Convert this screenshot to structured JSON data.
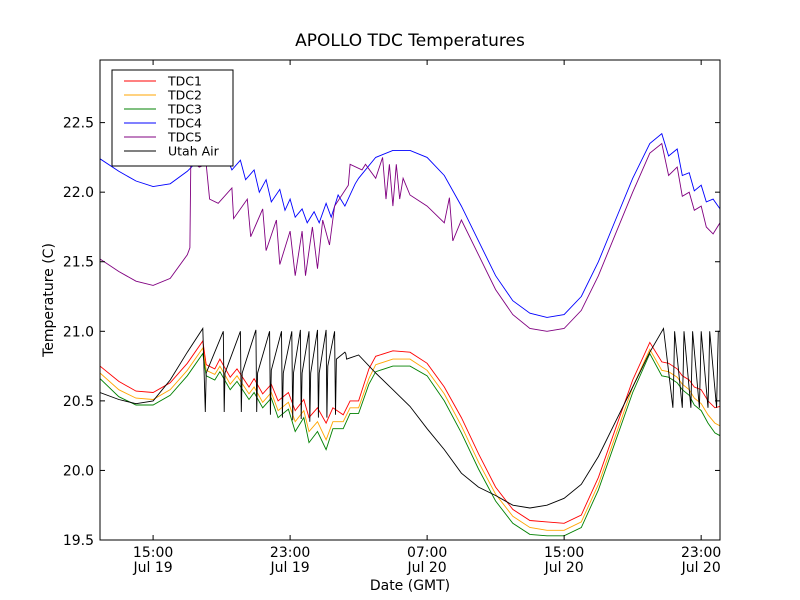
{
  "chart_data": {
    "type": "line",
    "title": "APOLLO TDC Temperatures",
    "xlabel": "Date (GMT)",
    "ylabel": "Temperature (C)",
    "x_units": "hours since 15:00 Jul 19 (GMT)",
    "xlim": [
      -3.1,
      33.1
    ],
    "ylim": [
      19.5,
      22.95
    ],
    "grid": false,
    "legend_position": "top-left",
    "x_ticks": [
      {
        "value": 0,
        "label_time": "15:00",
        "label_date": "Jul 19"
      },
      {
        "value": 8,
        "label_time": "23:00",
        "label_date": "Jul 19"
      },
      {
        "value": 16,
        "label_time": "07:00",
        "label_date": "Jul 20"
      },
      {
        "value": 24,
        "label_time": "15:00",
        "label_date": "Jul 20"
      },
      {
        "value": 32,
        "label_time": "23:00",
        "label_date": "Jul 20"
      }
    ],
    "y_ticks": [
      {
        "value": 19.5,
        "label": "19.5"
      },
      {
        "value": 20.0,
        "label": "20.0"
      },
      {
        "value": 20.5,
        "label": "20.5"
      },
      {
        "value": 21.0,
        "label": "21.0"
      },
      {
        "value": 21.5,
        "label": "21.5"
      },
      {
        "value": 22.0,
        "label": "22.0"
      },
      {
        "value": 22.5,
        "label": "22.5"
      }
    ],
    "series": [
      {
        "name": "TDC1",
        "color": "#ff0000",
        "x": [
          -3.1,
          -2,
          -1,
          0,
          1,
          2,
          2.9,
          3.1,
          3.6,
          3.9,
          4.5,
          4.9,
          5.6,
          5.9,
          6.4,
          6.9,
          7.3,
          7.9,
          8.3,
          8.8,
          9.1,
          9.6,
          10.1,
          10.5,
          11.1,
          11.5,
          12,
          12.6,
          13,
          14,
          15,
          16,
          17,
          18,
          19,
          20,
          21,
          22,
          23,
          24,
          25,
          26,
          27,
          28,
          29,
          29.7,
          30.1,
          30.6,
          30.9,
          31.3,
          31.6,
          32,
          32.4,
          32.8,
          33.1
        ],
        "y": [
          20.75,
          20.64,
          20.57,
          20.56,
          20.63,
          20.77,
          20.93,
          20.76,
          20.73,
          20.8,
          20.67,
          20.73,
          20.6,
          20.66,
          20.55,
          20.62,
          20.5,
          20.56,
          20.43,
          20.51,
          20.38,
          20.45,
          20.34,
          20.45,
          20.4,
          20.5,
          20.5,
          20.73,
          20.82,
          20.86,
          20.85,
          20.77,
          20.6,
          20.38,
          20.12,
          19.88,
          19.72,
          19.64,
          19.63,
          19.62,
          19.68,
          19.95,
          20.3,
          20.65,
          20.92,
          20.78,
          20.77,
          20.73,
          20.68,
          20.65,
          20.6,
          20.58,
          20.5,
          20.45,
          20.46
        ]
      },
      {
        "name": "TDC2",
        "color": "#ffa500",
        "x": [
          -3.1,
          -2,
          -1,
          0,
          1,
          2,
          2.9,
          3.1,
          3.6,
          3.9,
          4.5,
          4.9,
          5.6,
          5.9,
          6.4,
          6.9,
          7.3,
          7.9,
          8.3,
          8.8,
          9.1,
          9.6,
          10.1,
          10.5,
          11.1,
          11.5,
          12,
          12.6,
          13,
          14,
          15,
          16,
          17,
          18,
          19,
          20,
          21,
          22,
          23,
          24,
          25,
          26,
          27,
          28,
          29,
          29.7,
          30.1,
          30.6,
          30.9,
          31.3,
          31.6,
          32,
          32.4,
          32.8,
          33.1
        ],
        "y": [
          20.7,
          20.58,
          20.52,
          20.51,
          20.58,
          20.72,
          20.88,
          20.72,
          20.69,
          20.75,
          20.62,
          20.68,
          20.55,
          20.6,
          20.49,
          20.56,
          20.43,
          20.49,
          20.35,
          20.43,
          20.28,
          20.35,
          20.22,
          20.35,
          20.35,
          20.45,
          20.45,
          20.66,
          20.76,
          20.8,
          20.8,
          20.72,
          20.55,
          20.32,
          20.06,
          19.83,
          19.67,
          19.59,
          19.57,
          19.57,
          19.63,
          19.9,
          20.25,
          20.6,
          20.87,
          20.72,
          20.71,
          20.67,
          20.62,
          20.58,
          20.52,
          20.48,
          20.4,
          20.34,
          20.32
        ]
      },
      {
        "name": "TDC3",
        "color": "#008000",
        "x": [
          -3.1,
          -2,
          -1,
          0,
          1,
          2,
          2.9,
          3.1,
          3.6,
          3.9,
          4.5,
          4.9,
          5.6,
          5.9,
          6.4,
          6.9,
          7.3,
          7.9,
          8.3,
          8.8,
          9.1,
          9.6,
          10.1,
          10.5,
          11.1,
          11.5,
          12,
          12.6,
          13,
          14,
          15,
          16,
          17,
          18,
          19,
          20,
          21,
          22,
          23,
          24,
          25,
          26,
          27,
          28,
          29,
          29.7,
          30.1,
          30.6,
          30.9,
          31.3,
          31.6,
          32,
          32.4,
          32.8,
          33.1
        ],
        "y": [
          20.66,
          20.53,
          20.47,
          20.47,
          20.54,
          20.68,
          20.84,
          20.68,
          20.65,
          20.71,
          20.58,
          20.64,
          20.51,
          20.56,
          20.45,
          20.52,
          20.38,
          20.44,
          20.28,
          20.38,
          20.2,
          20.28,
          20.15,
          20.3,
          20.3,
          20.41,
          20.41,
          20.62,
          20.71,
          20.75,
          20.75,
          20.68,
          20.5,
          20.27,
          20.01,
          19.78,
          19.62,
          19.54,
          19.53,
          19.53,
          19.59,
          19.86,
          20.21,
          20.56,
          20.84,
          20.68,
          20.67,
          20.63,
          20.58,
          20.54,
          20.47,
          20.43,
          20.34,
          20.27,
          20.25
        ]
      },
      {
        "name": "TDC4",
        "color": "#0000ff",
        "x": [
          -3.1,
          -2,
          -1,
          0,
          1,
          2,
          2.4,
          2.7,
          3.1,
          3.5,
          3.9,
          4.3,
          4.6,
          5.1,
          5.4,
          5.9,
          6.2,
          6.6,
          6.9,
          7.4,
          7.7,
          8,
          8.3,
          8.7,
          9,
          9.4,
          9.7,
          10.1,
          10.4,
          10.8,
          11.2,
          11.8,
          12,
          13,
          14,
          15,
          16,
          17,
          18,
          19,
          20,
          21,
          22,
          23,
          24,
          25,
          26,
          27,
          28,
          29,
          29.7,
          30.1,
          30.6,
          30.9,
          31.3,
          31.6,
          32,
          32.3,
          32.7,
          33.1
        ],
        "y": [
          22.24,
          22.15,
          22.08,
          22.04,
          22.06,
          22.15,
          22.2,
          22.27,
          22.19,
          22.21,
          22.19,
          22.25,
          22.16,
          22.23,
          22.09,
          22.16,
          22.0,
          22.09,
          21.93,
          22.02,
          21.87,
          21.95,
          21.82,
          21.88,
          21.78,
          21.86,
          21.78,
          21.92,
          21.82,
          21.98,
          21.9,
          22.06,
          22.1,
          22.25,
          22.3,
          22.3,
          22.25,
          22.12,
          21.9,
          21.65,
          21.4,
          21.22,
          21.13,
          21.1,
          21.12,
          21.25,
          21.5,
          21.8,
          22.1,
          22.35,
          22.42,
          22.26,
          22.31,
          22.12,
          22.14,
          22.01,
          22.05,
          21.93,
          21.95,
          21.88
        ]
      },
      {
        "name": "TDC5",
        "color": "#800080",
        "x": [
          -3.1,
          -2,
          -1,
          0,
          1,
          2,
          2.15,
          2.2,
          2.7,
          3.1,
          3.3,
          3.8,
          4.6,
          4.7,
          5.5,
          5.7,
          6.4,
          6.6,
          7.2,
          7.4,
          8,
          8.3,
          8.7,
          8.9,
          9.3,
          9.6,
          9.9,
          10.3,
          10.6,
          11.4,
          11.5,
          12.2,
          12.4,
          13,
          13.4,
          13.6,
          13.8,
          14,
          14.2,
          14.4,
          14.6,
          15,
          16,
          17,
          17.3,
          17.5,
          18,
          19,
          20,
          21,
          22,
          23,
          24,
          25,
          26,
          27,
          28,
          29,
          29.7,
          30.1,
          30.6,
          30.9,
          31.3,
          31.6,
          32,
          32.3,
          32.7,
          33.1
        ],
        "y": [
          21.52,
          21.43,
          21.36,
          21.33,
          21.38,
          21.55,
          21.6,
          22.22,
          22.18,
          22.2,
          21.95,
          21.92,
          22.03,
          21.81,
          21.95,
          21.68,
          21.88,
          21.58,
          21.8,
          21.48,
          21.72,
          21.4,
          21.72,
          21.4,
          21.75,
          21.45,
          21.8,
          21.62,
          21.9,
          22.05,
          22.2,
          22.16,
          22.2,
          22.1,
          22.25,
          21.95,
          22.2,
          21.9,
          22.2,
          21.95,
          22.1,
          21.98,
          21.9,
          21.78,
          21.96,
          21.65,
          21.8,
          21.55,
          21.3,
          21.12,
          21.02,
          21.0,
          21.02,
          21.15,
          21.4,
          21.7,
          22.0,
          22.28,
          22.35,
          22.12,
          22.18,
          21.97,
          22.0,
          21.87,
          21.9,
          21.75,
          21.7,
          21.78
        ]
      },
      {
        "name": "Utah Air",
        "color": "#000000",
        "x": [
          -3.1,
          -2,
          -1,
          0,
          1,
          2,
          2.9,
          3.05,
          3.1,
          4.1,
          4.15,
          4.2,
          5.1,
          5.15,
          5.2,
          6,
          6.05,
          6.1,
          6.8,
          6.85,
          6.9,
          7.5,
          7.55,
          7.6,
          8.1,
          8.15,
          8.2,
          8.6,
          8.65,
          8.7,
          9.1,
          9.15,
          9.2,
          9.6,
          9.65,
          9.7,
          10.1,
          10.15,
          10.2,
          10.6,
          10.65,
          10.7,
          11.2,
          11.25,
          11.3,
          12,
          13,
          14,
          15,
          16,
          17,
          18,
          19,
          20,
          21,
          22,
          23,
          24,
          25,
          26,
          27,
          28,
          29,
          29.8,
          30.35,
          30.4,
          30.45,
          30.9,
          30.95,
          31,
          31.4,
          31.45,
          31.5,
          31.9,
          31.95,
          32,
          32.4,
          32.45,
          32.5,
          32.9,
          32.95,
          33,
          33.1
        ],
        "y": [
          20.56,
          20.51,
          20.48,
          20.5,
          20.65,
          20.85,
          21.02,
          20.42,
          20.7,
          21.0,
          20.42,
          20.7,
          21.0,
          20.42,
          20.7,
          21.01,
          20.42,
          20.7,
          21.0,
          20.4,
          20.72,
          21.0,
          20.38,
          20.7,
          21.0,
          20.36,
          20.7,
          21.01,
          20.37,
          20.7,
          21.0,
          20.35,
          20.7,
          21.01,
          20.38,
          20.7,
          21.01,
          20.38,
          20.75,
          21.0,
          20.4,
          20.8,
          20.85,
          20.84,
          20.8,
          20.83,
          20.7,
          20.58,
          20.46,
          20.3,
          20.15,
          19.98,
          19.88,
          19.82,
          19.75,
          19.73,
          19.75,
          19.8,
          19.9,
          20.1,
          20.35,
          20.6,
          20.85,
          21.02,
          20.45,
          20.7,
          21.0,
          20.45,
          20.72,
          21.0,
          20.45,
          20.72,
          21.0,
          20.45,
          20.72,
          21.0,
          20.45,
          20.72,
          21.0,
          20.45,
          20.72,
          21.0,
          21.0
        ]
      }
    ]
  }
}
